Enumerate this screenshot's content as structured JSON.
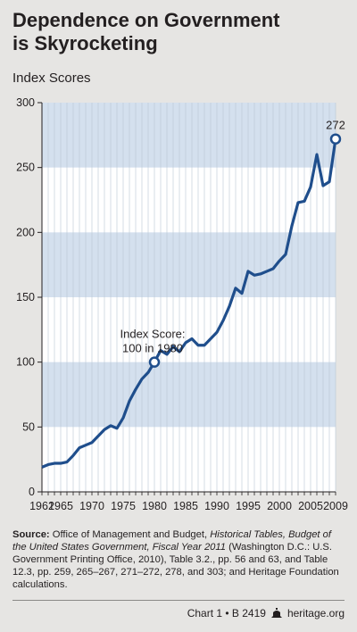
{
  "title_line1": "Dependence on Government",
  "title_line2": "is Skyrocketing",
  "subtitle": "Index Scores",
  "source": {
    "label": "Source:",
    "text1": " Office of Management and Budget, ",
    "italic": "Historical Tables, Budget of the United States Government, Fiscal Year 2011",
    "text2": " (Washington D.C.: U.S. Government Printing Office, 2010), Table 3.2., pp. 56 and 63, and Table 12.3, pp. 259, 265–267, 271–272, 278, and 303; and Heritage Foundation calculations."
  },
  "footer": {
    "chart_ref": "Chart 1 • B 2419",
    "site": "heritage.org",
    "logo_icon": "heritage-bell-icon"
  },
  "colors": {
    "line": "#1f4e8c",
    "band": "#d4e0ee",
    "background": "#e6e5e3",
    "gridline": "#ffffff"
  },
  "chart_data": {
    "type": "line",
    "title": "Dependence on Government is Skyrocketing",
    "ylabel": "Index Scores",
    "xlabel": "",
    "ylim": [
      0,
      300
    ],
    "xlim": [
      1962,
      2009
    ],
    "yticks": [
      0,
      50,
      100,
      150,
      200,
      250,
      300
    ],
    "xticks": [
      1962,
      1965,
      1970,
      1975,
      1980,
      1985,
      1990,
      1995,
      2000,
      2005,
      2009
    ],
    "grid": "vertical lines each year, alternating horizontal bands every 50",
    "series": [
      {
        "x": [
          1962,
          1963,
          1964,
          1965,
          1966,
          1967,
          1968,
          1969,
          1970,
          1971,
          1972,
          1973,
          1974,
          1975,
          1976,
          1977,
          1978,
          1979,
          1980,
          1981,
          1982,
          1983,
          1984,
          1985,
          1986,
          1987,
          1988,
          1989,
          1990,
          1991,
          1992,
          1993,
          1994,
          1995,
          1996,
          1997,
          1998,
          1999,
          2000,
          2001,
          2002,
          2003,
          2004,
          2005,
          2006,
          2007,
          2008,
          2009
        ],
        "values": [
          19,
          21,
          22,
          22,
          23,
          28,
          34,
          36,
          38,
          43,
          48,
          51,
          49,
          57,
          70,
          79,
          87,
          92,
          100,
          109,
          106,
          112,
          108,
          115,
          118,
          113,
          113,
          118,
          123,
          132,
          143,
          157,
          153,
          170,
          167,
          168,
          170,
          172,
          178,
          183,
          205,
          223,
          224,
          235,
          260,
          236,
          239,
          272
        ]
      }
    ],
    "annotations": [
      {
        "text_line1": "Index Score:",
        "text_line2": "100 in 1980",
        "x": 1980,
        "y": 100
      },
      {
        "text": "272",
        "x": 2009,
        "y": 272
      }
    ]
  }
}
